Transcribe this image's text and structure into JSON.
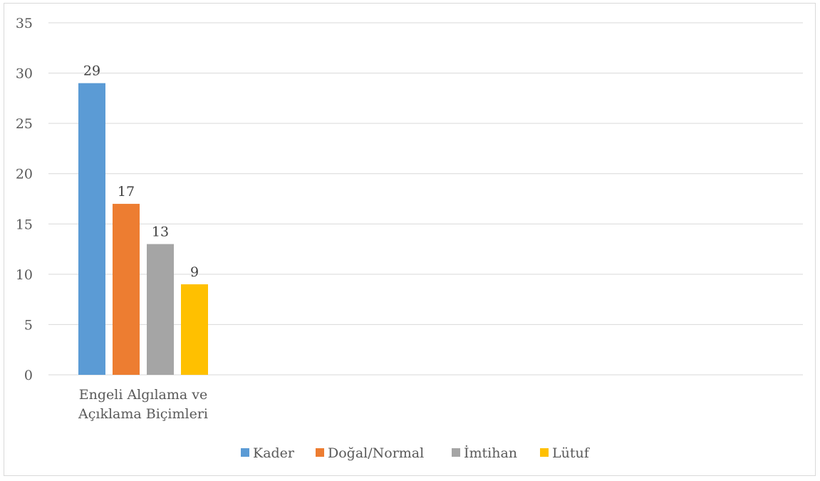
{
  "chart_data": {
    "type": "bar",
    "categories": [
      "Engeli Algılama ve Açıklama Biçimleri"
    ],
    "category_lines": [
      [
        "Engeli Algılama ve",
        "Açıklama Biçimleri"
      ]
    ],
    "series": [
      {
        "name": "Kader",
        "values": [
          29
        ],
        "color": "#5b9bd5"
      },
      {
        "name": "Doğal/Normal",
        "values": [
          17
        ],
        "color": "#ed7d31"
      },
      {
        "name": "İmtihan",
        "values": [
          13
        ],
        "color": "#a5a5a5"
      },
      {
        "name": "Lütuf",
        "values": [
          9
        ],
        "color": "#ffc000"
      }
    ],
    "ylim": [
      0,
      35
    ],
    "yticks": [
      0,
      5,
      10,
      15,
      20,
      25,
      30,
      35
    ],
    "grid": true,
    "data_labels": true,
    "legend_position": "bottom",
    "title": "",
    "xlabel": "",
    "ylabel": ""
  }
}
